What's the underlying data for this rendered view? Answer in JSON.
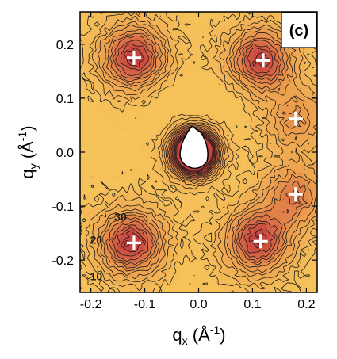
{
  "chart_data": {
    "type": "contour",
    "panel_label": "(c)",
    "xlabel": "q",
    "xlabel_sub": "x",
    "xlabel_unit_open": " (Å",
    "xlabel_unit_sup": "-1",
    "xlabel_unit_close": ")",
    "ylabel": "q",
    "ylabel_sub": "y",
    "ylabel_unit_open": " (Å",
    "ylabel_unit_sup": "-1",
    "ylabel_unit_close": ")",
    "xlim": [
      -0.22,
      0.22
    ],
    "ylim": [
      -0.26,
      0.26
    ],
    "x_ticks": [
      -0.2,
      -0.1,
      0.0,
      0.1,
      0.2
    ],
    "x_tick_labels": [
      "-0.2",
      "-0.1",
      "0.0",
      "0.1",
      "0.2"
    ],
    "y_ticks": [
      0.2,
      0.1,
      0.0,
      -0.1,
      -0.2
    ],
    "y_tick_labels": [
      "0.2",
      "0.1",
      "0.0",
      "-0.1",
      "-0.2"
    ],
    "contour_labels": [
      {
        "text": "30",
        "x": -0.145,
        "y": -0.127
      },
      {
        "text": "20",
        "x": -0.19,
        "y": -0.17
      },
      {
        "text": "10",
        "x": -0.19,
        "y": -0.237
      }
    ],
    "peaks": [
      {
        "x": -0.12,
        "y": 0.175,
        "amp": 1.0
      },
      {
        "x": 0.115,
        "y": 0.17,
        "amp": 0.95
      },
      {
        "x": 0.18,
        "y": 0.062,
        "amp": 0.5
      },
      {
        "x": 0.18,
        "y": -0.078,
        "amp": 0.62
      },
      {
        "x": 0.11,
        "y": -0.165,
        "amp": 0.95
      },
      {
        "x": -0.125,
        "y": -0.168,
        "amp": 1.0
      }
    ],
    "markers": [
      {
        "x": -0.12,
        "y": 0.175
      },
      {
        "x": 0.12,
        "y": 0.17
      },
      {
        "x": 0.18,
        "y": 0.062
      },
      {
        "x": 0.18,
        "y": -0.078
      },
      {
        "x": 0.115,
        "y": -0.165
      },
      {
        "x": -0.12,
        "y": -0.168
      }
    ],
    "center_hole": {
      "x": -0.008,
      "y": 0.0
    },
    "colors": {
      "low": "#f6c35a",
      "mid": "#eb9a4c",
      "high": "#c8423f",
      "contour_line": "#1a1a1a",
      "marker": "#ffffff"
    }
  }
}
